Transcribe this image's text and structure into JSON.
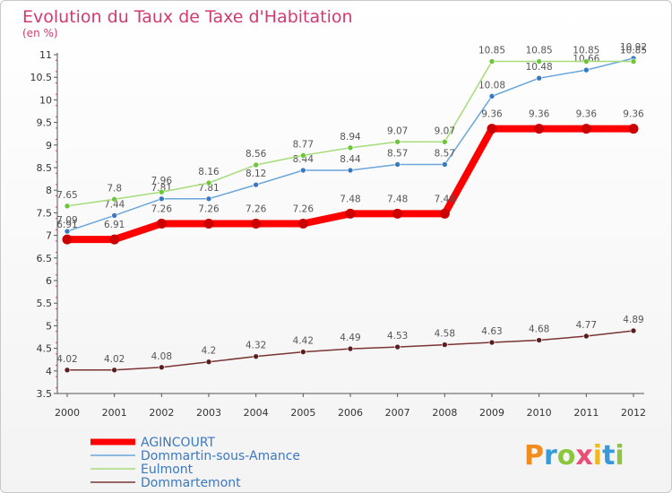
{
  "chart_data": {
    "type": "line",
    "title": "Evolution du Taux de Taxe d'Habitation",
    "subtitle": "(en %)",
    "xlabel": "",
    "ylabel": "",
    "x": [
      "2000",
      "2001",
      "2002",
      "2003",
      "2004",
      "2005",
      "2006",
      "2007",
      "2008",
      "2009",
      "2010",
      "2011",
      "2012"
    ],
    "ylim": [
      3.5,
      11
    ],
    "yticks": [
      "3.5",
      "4",
      "4.5",
      "5",
      "5.5",
      "6",
      "6.5",
      "7",
      "7.5",
      "8",
      "8.5",
      "9",
      "9.5",
      "10",
      "10.5",
      "11"
    ],
    "grid": false,
    "legend_position": "bottom-left",
    "series": [
      {
        "name": "AGINCOURT",
        "color": "#ff0000",
        "marker": "#cc0000",
        "width": 8,
        "values": [
          6.91,
          6.91,
          7.26,
          7.26,
          7.26,
          7.26,
          7.48,
          7.48,
          7.48,
          9.36,
          9.36,
          9.36,
          9.36
        ],
        "labels": [
          "6.91",
          "6.91",
          "7.26",
          "7.26",
          "7.26",
          "7.26",
          "7.48",
          "7.48",
          "7.48",
          "9.36",
          "9.36",
          "9.36",
          "9.36"
        ]
      },
      {
        "name": "Dommartin-sous-Amance",
        "color": "#6aa6db",
        "marker": "#3a78c2",
        "width": 1.5,
        "values": [
          7.09,
          7.44,
          7.81,
          7.81,
          8.12,
          8.44,
          8.44,
          8.57,
          8.57,
          10.08,
          10.48,
          10.66,
          10.92
        ],
        "labels": [
          "7.09",
          "7.44",
          "7.81",
          "7.81",
          "8.12",
          "8.44",
          "8.44",
          "8.57",
          "8.57",
          "10.08",
          "10.48",
          "10.66",
          "10.92"
        ]
      },
      {
        "name": "Eulmont",
        "color": "#a6dc7a",
        "marker": "#6cc63a",
        "width": 1.5,
        "values": [
          7.65,
          7.8,
          7.96,
          8.16,
          8.56,
          8.77,
          8.94,
          9.07,
          9.07,
          10.85,
          10.85,
          10.85,
          10.85
        ],
        "labels": [
          "7.65",
          "7.8",
          "7.96",
          "8.16",
          "8.56",
          "8.77",
          "8.94",
          "9.07",
          "9.07",
          "10.85",
          "10.85",
          "10.85",
          "10.85"
        ]
      },
      {
        "name": "Dommartemont",
        "color": "#7a3434",
        "marker": "#5a1e1e",
        "width": 1.5,
        "values": [
          4.02,
          4.02,
          4.08,
          4.2,
          4.32,
          4.42,
          4.49,
          4.53,
          4.58,
          4.63,
          4.68,
          4.77,
          4.89
        ],
        "labels": [
          "4.02",
          "4.02",
          "4.08",
          "4.2",
          "4.32",
          "4.42",
          "4.49",
          "4.53",
          "4.58",
          "4.63",
          "4.68",
          "4.77",
          "4.89"
        ]
      }
    ]
  },
  "logo": {
    "text": "Proxiti",
    "colors": [
      "#f28c1e",
      "#3a9ad9",
      "#8cc63f",
      "#e94e77",
      "#f2b91e",
      "#3a9ad9",
      "#8cc63f"
    ]
  }
}
